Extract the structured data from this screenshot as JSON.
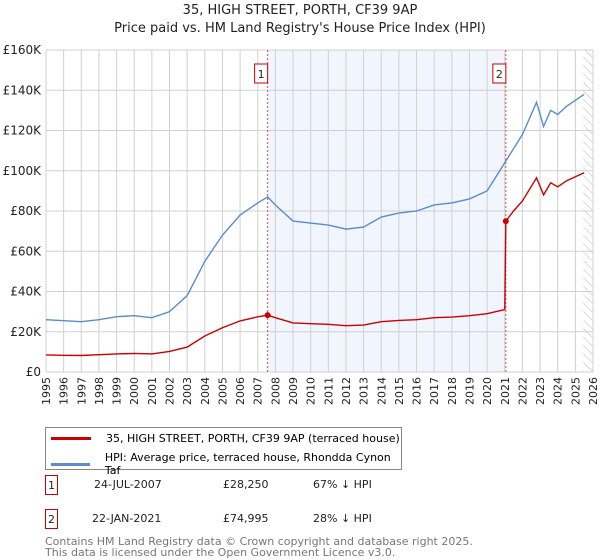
{
  "chart_data": {
    "type": "line",
    "title": "35, HIGH STREET, PORTH, CF39 9AP",
    "subtitle": "Price paid vs. HM Land Registry's House Price Index (HPI)",
    "xlim": [
      1995,
      2026
    ],
    "ylim": [
      0,
      160000
    ],
    "yticks": [
      "£0",
      "£20K",
      "£40K",
      "£60K",
      "£80K",
      "£100K",
      "£120K",
      "£140K",
      "£160K"
    ],
    "xticks": [
      "1995",
      "1996",
      "1997",
      "1998",
      "1999",
      "2000",
      "2001",
      "2002",
      "2003",
      "2004",
      "2005",
      "2006",
      "2007",
      "2008",
      "2009",
      "2010",
      "2011",
      "2012",
      "2013",
      "2014",
      "2015",
      "2016",
      "2017",
      "2018",
      "2019",
      "2020",
      "2021",
      "2022",
      "2023",
      "2024",
      "2025",
      "2026"
    ],
    "series": [
      {
        "name": "35, HIGH STREET, PORTH, CF39 9AP (terraced house)",
        "color": "#cc0000",
        "x": [
          1995,
          1996,
          1997,
          1998,
          1999,
          2000,
          2001,
          2002,
          2003,
          2004,
          2005,
          2006,
          2007,
          2007.56,
          2008,
          2009,
          2010,
          2011,
          2012,
          2013,
          2014,
          2015,
          2016,
          2017,
          2018,
          2019,
          2020,
          2021.0,
          2021.06,
          2021.5,
          2022,
          2022.8,
          2023.2,
          2023.6,
          2024,
          2024.5,
          2025,
          2025.5
        ],
        "y": [
          8500,
          8300,
          8200,
          8600,
          9000,
          9200,
          9000,
          10200,
          12400,
          17900,
          22000,
          25400,
          27400,
          28250,
          27000,
          24400,
          24000,
          23700,
          23000,
          23300,
          25000,
          25600,
          26000,
          27000,
          27300,
          28000,
          29000,
          31000,
          74995,
          80000,
          85000,
          96500,
          88000,
          94000,
          92000,
          95000,
          97000,
          99000
        ]
      },
      {
        "name": "HPI: Average price, terraced house, Rhondda Cynon Taf",
        "color": "#5b8bd0",
        "x": [
          1995,
          1996,
          1997,
          1998,
          1999,
          2000,
          2001,
          2002,
          2003,
          2004,
          2005,
          2006,
          2007,
          2007.56,
          2008,
          2009,
          2010,
          2011,
          2012,
          2013,
          2014,
          2015,
          2016,
          2017,
          2018,
          2019,
          2020,
          2021,
          2021.5,
          2022,
          2022.8,
          2023.2,
          2023.6,
          2024,
          2024.5,
          2025,
          2025.5
        ],
        "y": [
          26000,
          25500,
          25000,
          26000,
          27500,
          28000,
          27000,
          30000,
          38000,
          55000,
          68000,
          78000,
          84000,
          87000,
          83000,
          75000,
          74000,
          73000,
          71000,
          72000,
          77000,
          79000,
          80000,
          83000,
          84000,
          86000,
          90000,
          104000,
          111000,
          118000,
          134000,
          122000,
          130000,
          128000,
          132000,
          135000,
          138000
        ]
      }
    ],
    "markers": [
      {
        "label": "1",
        "x": 2007.56
      },
      {
        "label": "2",
        "x": 2021.06
      }
    ],
    "shaded_range": [
      2007.56,
      2021.06
    ],
    "hatched_from": 2025.45
  },
  "legend": [
    "35, HIGH STREET, PORTH, CF39 9AP (terraced house)",
    "HPI: Average price, terraced house, Rhondda Cynon Taf"
  ],
  "sales": [
    {
      "num": "1",
      "date": "24-JUL-2007",
      "price": "£28,250",
      "hpi": "67% ↓ HPI"
    },
    {
      "num": "2",
      "date": "22-JAN-2021",
      "price": "£74,995",
      "hpi": "28% ↓ HPI"
    }
  ],
  "footer": [
    "Contains HM Land Registry data © Crown copyright and database right 2025.",
    "This data is licensed under the Open Government Licence v3.0."
  ]
}
